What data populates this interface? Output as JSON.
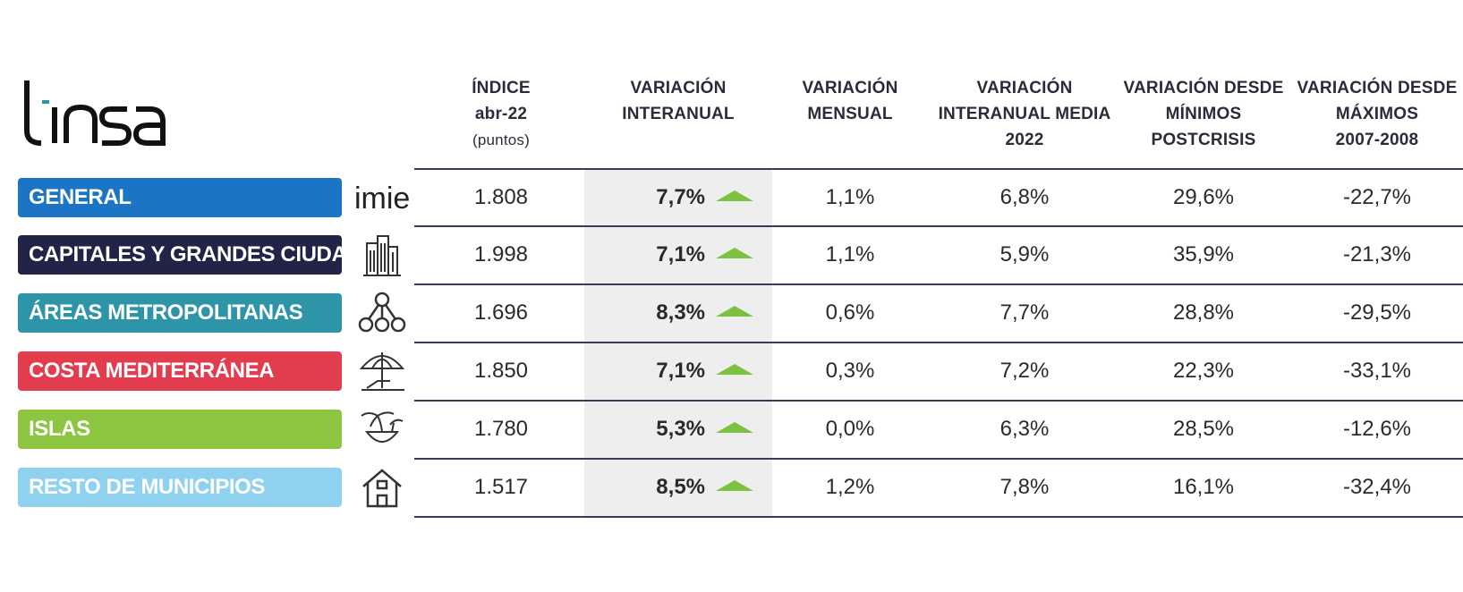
{
  "logo": {
    "text": "tinsa"
  },
  "headers": [
    {
      "id": "indice",
      "lines": [
        "ÍNDICE",
        "abr-22"
      ],
      "sub": "(puntos)"
    },
    {
      "id": "interanual",
      "lines": [
        "VARIACIÓN",
        "INTERANUAL"
      ],
      "sub": ""
    },
    {
      "id": "mensual",
      "lines": [
        "VARIACIÓN",
        "MENSUAL"
      ],
      "sub": ""
    },
    {
      "id": "media",
      "lines": [
        "VARIACIÓN",
        "INTERANUAL MEDIA",
        "2022"
      ],
      "sub": ""
    },
    {
      "id": "minimos",
      "lines": [
        "VARIACIÓN DESDE",
        "MÍNIMOS",
        "POSTCRISIS"
      ],
      "sub": ""
    },
    {
      "id": "maximos",
      "lines": [
        "VARIACIÓN DESDE",
        "MÁXIMOS",
        "2007-2008"
      ],
      "sub": ""
    }
  ],
  "chart_data": {
    "type": "table",
    "columns": [
      "ÍNDICE abr-22 (puntos)",
      "VARIACIÓN INTERANUAL",
      "VARIACIÓN MENSUAL",
      "VARIACIÓN INTERANUAL MEDIA 2022",
      "VARIACIÓN DESDE MÍNIMOS POSTCRISIS",
      "VARIACIÓN DESDE MÁXIMOS 2007-2008"
    ],
    "rows": [
      {
        "label": "GENERAL",
        "icon": "imie-logo-icon",
        "icon_text": "imie",
        "color": "#1B75C4",
        "indice": "1.808",
        "interanual": "7,7%",
        "trend": "up",
        "mensual": "1,1%",
        "media": "6,8%",
        "minimos": "29,6%",
        "maximos": "-22,7%"
      },
      {
        "label": "CAPITALES Y GRANDES CIUDADES",
        "icon": "buildings-icon",
        "color": "#222447",
        "indice": "1.998",
        "interanual": "7,1%",
        "trend": "up",
        "mensual": "1,1%",
        "media": "5,9%",
        "minimos": "35,9%",
        "maximos": "-21,3%"
      },
      {
        "label": "ÁREAS METROPOLITANAS",
        "icon": "network-nodes-icon",
        "color": "#2E95A9",
        "indice": "1.696",
        "interanual": "8,3%",
        "trend": "up",
        "mensual": "0,6%",
        "media": "7,7%",
        "minimos": "28,8%",
        "maximos": "-29,5%"
      },
      {
        "label": "COSTA MEDITERRÁNEA",
        "icon": "beach-umbrella-icon",
        "color": "#E23D4E",
        "indice": "1.850",
        "interanual": "7,1%",
        "trend": "up",
        "mensual": "0,3%",
        "media": "7,2%",
        "minimos": "22,3%",
        "maximos": "-33,1%"
      },
      {
        "label": "ISLAS",
        "icon": "island-palm-icon",
        "color": "#8CC540",
        "indice": "1.780",
        "interanual": "5,3%",
        "trend": "up",
        "mensual": "0,0%",
        "media": "6,3%",
        "minimos": "28,5%",
        "maximos": "-12,6%"
      },
      {
        "label": "RESTO DE MUNICIPIOS",
        "icon": "house-icon",
        "color": "#8FD2F0",
        "indice": "1.517",
        "interanual": "8,5%",
        "trend": "up",
        "mensual": "1,2%",
        "media": "7,8%",
        "minimos": "16,1%",
        "maximos": "-32,4%"
      }
    ]
  },
  "colors": {
    "trend_up": "#7DC142",
    "rule": "#3b3b55",
    "highlight": "#eeeeee"
  }
}
